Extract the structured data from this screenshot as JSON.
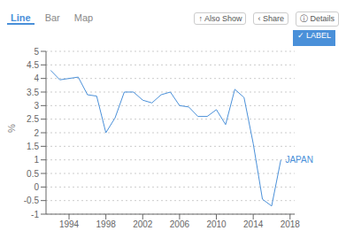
{
  "chart_data": {
    "type": "line",
    "y_label": "%",
    "x": [
      1992,
      1993,
      1994,
      1995,
      1996,
      1997,
      1998,
      1999,
      2000,
      2001,
      2002,
      2003,
      2004,
      2005,
      2006,
      2007,
      2008,
      2009,
      2010,
      2011,
      2012,
      2013,
      2014,
      2015,
      2016,
      2017
    ],
    "values": [
      4.3,
      3.95,
      4.0,
      4.05,
      3.4,
      3.35,
      2.0,
      2.55,
      3.5,
      3.5,
      3.2,
      3.1,
      3.4,
      3.5,
      3.0,
      2.95,
      2.6,
      2.6,
      2.85,
      2.3,
      3.6,
      3.3,
      1.6,
      -0.45,
      -0.7,
      1.0
    ],
    "color": "#4a90d9",
    "ylim": [
      -1.0,
      5.0
    ],
    "yticks": [
      -1.0,
      -0.5,
      0.0,
      0.5,
      1.0,
      1.5,
      2.0,
      2.5,
      3.0,
      3.5,
      4.0,
      4.5,
      5.0
    ],
    "xlim": [
      1991.5,
      2018.5
    ],
    "xticks": [
      1994,
      1998,
      2002,
      2006,
      2010,
      2014,
      2018
    ],
    "grid": true,
    "annotations": [
      {
        "text": "JAPAN",
        "x": 2017.0,
        "y": 1.0
      }
    ],
    "tabs": [
      "Line",
      "Bar",
      "Map"
    ],
    "buttons": [
      "↑ Also Show",
      "‹ Share",
      "ⓘ Details"
    ],
    "label_checkbox": "✓ LABEL"
  }
}
